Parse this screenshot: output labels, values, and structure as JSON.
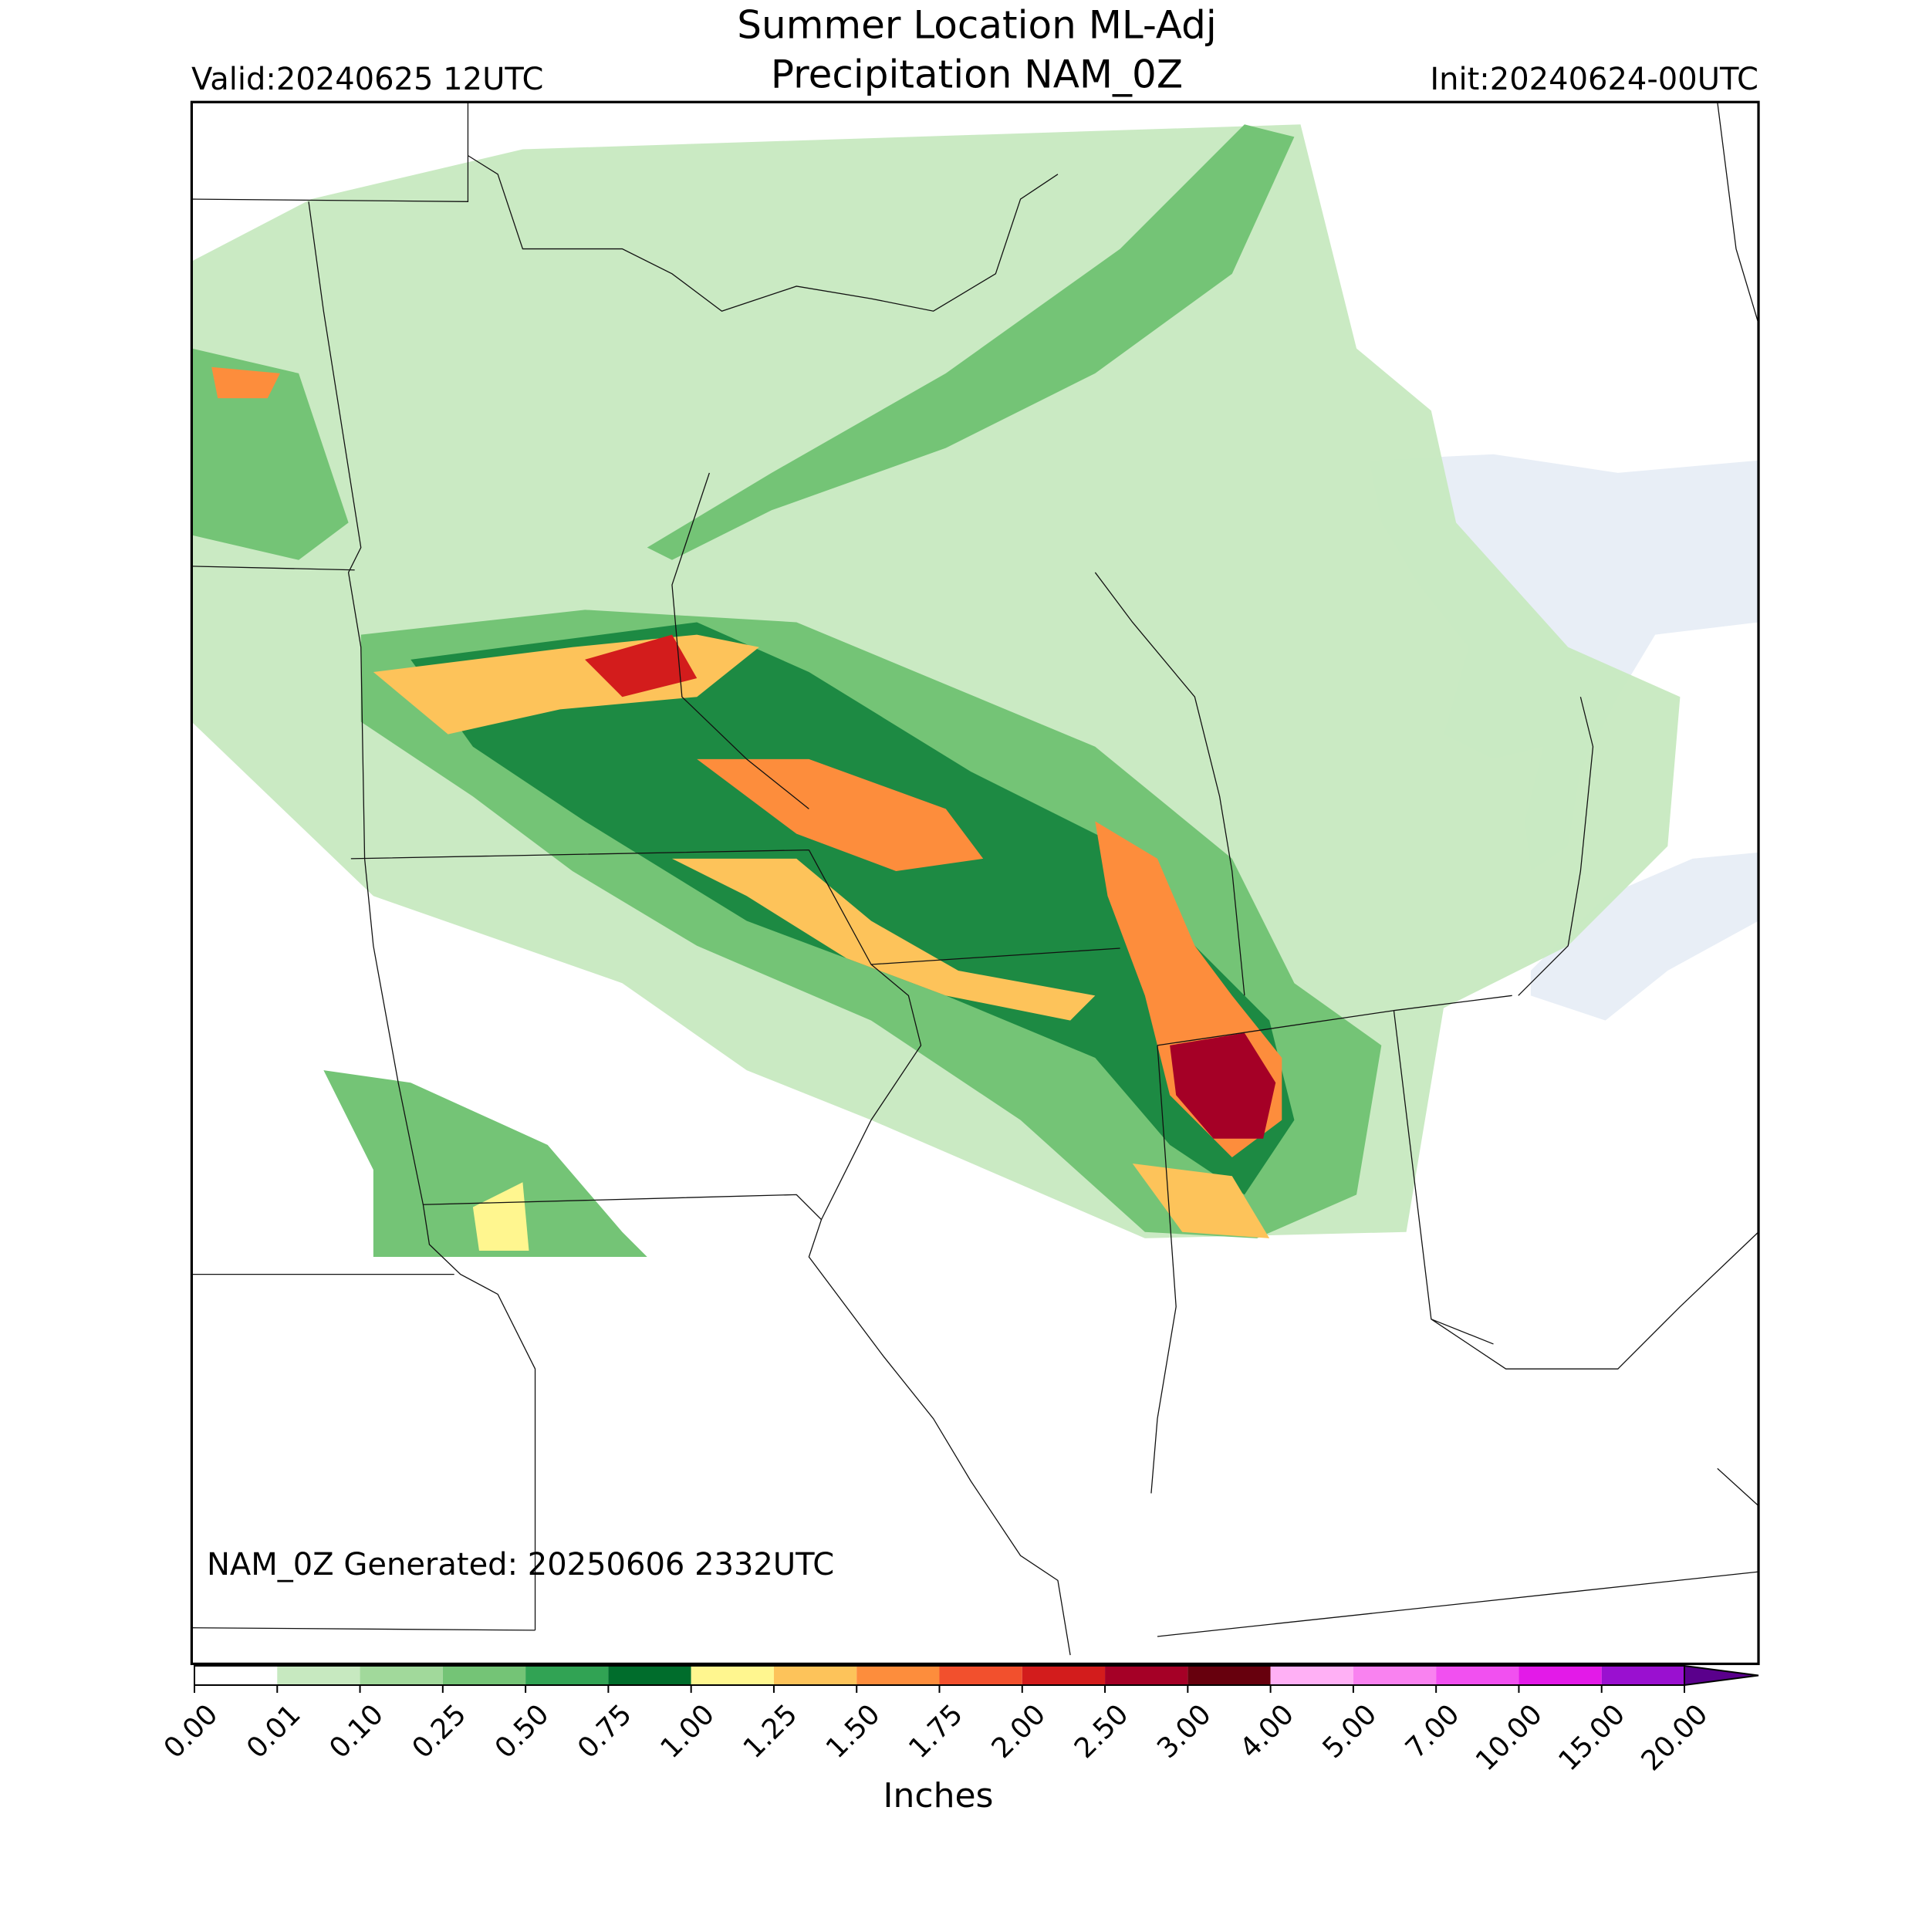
{
  "title": [
    "Summer Location ML-Adj",
    "Precipitation NAM_0Z"
  ],
  "valid": "Valid:20240625 12UTC",
  "init": "Init:20240624-00UTC",
  "generated": "NAM_0Z Generated: 20250606 2332UTC",
  "colorbar": {
    "label": "Inches",
    "ticks": [
      {
        "value": 0,
        "label": "0.00"
      },
      {
        "value": 0.01,
        "label": "0.01"
      },
      {
        "value": 0.1,
        "label": "0.10"
      },
      {
        "value": 0.25,
        "label": "0.25"
      },
      {
        "value": 0.5,
        "label": "0.50"
      },
      {
        "value": 0.75,
        "label": "0.75"
      },
      {
        "value": 1,
        "label": "1.00"
      },
      {
        "value": 1.25,
        "label": "1.25"
      },
      {
        "value": 1.5,
        "label": "1.50"
      },
      {
        "value": 1.75,
        "label": "1.75"
      },
      {
        "value": 2,
        "label": "2.00"
      },
      {
        "value": 2.5,
        "label": "2.50"
      },
      {
        "value": 3,
        "label": "3.00"
      },
      {
        "value": 4,
        "label": "4.00"
      },
      {
        "value": 5,
        "label": "5.00"
      },
      {
        "value": 7,
        "label": "7.00"
      },
      {
        "value": 10,
        "label": "10.00"
      },
      {
        "value": 15,
        "label": "15.00"
      },
      {
        "value": 20,
        "label": "20.00"
      }
    ],
    "colors": [
      "#ffffff",
      "#c7e9c0",
      "#a1d99b",
      "#74c476",
      "#31a354",
      "#006d2c",
      "#fff68f",
      "#fdc35a",
      "#fd8d3c",
      "#f2502d",
      "#d31c1c",
      "#a50026",
      "#67000d",
      "#ffb0f5",
      "#f982f0",
      "#f150f0",
      "#e31ae8",
      "#9a10d0"
    ],
    "extend_color": "#5a008c"
  }
}
